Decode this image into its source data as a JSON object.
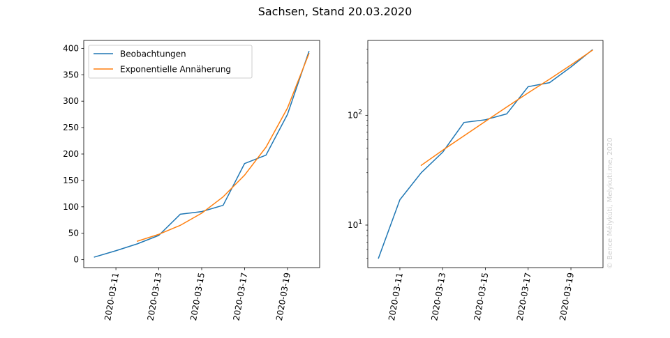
{
  "figure": {
    "title": "Sachsen, Stand 20.03.2020",
    "watermark": "© Bence Mélykúti, Melykuti.me, 2020"
  },
  "colors": {
    "observations": "#1f77b4",
    "fit": "#ff7f0e"
  },
  "chart_data": [
    {
      "type": "line",
      "title": "Sachsen, Stand 20.03.2020",
      "yscale": "linear",
      "xlim": [
        "2020-03-09T12:00",
        "2020-03-20T12:00"
      ],
      "ylim": [
        -15,
        415
      ],
      "yticks": [
        0,
        50,
        100,
        150,
        200,
        250,
        300,
        350,
        400
      ],
      "xticks": [
        "2020-03-11",
        "2020-03-13",
        "2020-03-15",
        "2020-03-17",
        "2020-03-19"
      ],
      "legend": {
        "placement": "top-left"
      },
      "series": [
        {
          "name": "Beobachtungen",
          "x": [
            "2020-03-10",
            "2020-03-11",
            "2020-03-12",
            "2020-03-13",
            "2020-03-14",
            "2020-03-15",
            "2020-03-16",
            "2020-03-17",
            "2020-03-18",
            "2020-03-19",
            "2020-03-20"
          ],
          "values": [
            5,
            17,
            30,
            46,
            86,
            91,
            103,
            182,
            198,
            275,
            394
          ]
        },
        {
          "name": "Exponentielle Annäherung",
          "x": [
            "2020-03-12",
            "2020-03-13",
            "2020-03-14",
            "2020-03-15",
            "2020-03-16",
            "2020-03-17",
            "2020-03-18",
            "2020-03-19",
            "2020-03-20"
          ],
          "values": [
            35,
            48,
            65,
            88,
            119,
            160,
            213,
            287,
            390
          ]
        }
      ]
    },
    {
      "type": "line",
      "yscale": "log",
      "xlim": [
        "2020-03-09T12:00",
        "2020-03-20T12:00"
      ],
      "ylim": [
        4.1,
        480
      ],
      "yticks": [
        10,
        100
      ],
      "ytick_labels": [
        "10^1",
        "10^2"
      ],
      "xticks": [
        "2020-03-11",
        "2020-03-13",
        "2020-03-15",
        "2020-03-17",
        "2020-03-19"
      ],
      "series": [
        {
          "name": "Beobachtungen",
          "x": [
            "2020-03-10",
            "2020-03-11",
            "2020-03-12",
            "2020-03-13",
            "2020-03-14",
            "2020-03-15",
            "2020-03-16",
            "2020-03-17",
            "2020-03-18",
            "2020-03-19",
            "2020-03-20"
          ],
          "values": [
            5,
            17,
            30,
            46,
            86,
            91,
            103,
            182,
            198,
            275,
            394
          ]
        },
        {
          "name": "Exponentielle Annäherung",
          "x": [
            "2020-03-12",
            "2020-03-13",
            "2020-03-14",
            "2020-03-15",
            "2020-03-16",
            "2020-03-17",
            "2020-03-18",
            "2020-03-19",
            "2020-03-20"
          ],
          "values": [
            35,
            48,
            65,
            88,
            119,
            160,
            213,
            287,
            390
          ]
        }
      ]
    }
  ]
}
